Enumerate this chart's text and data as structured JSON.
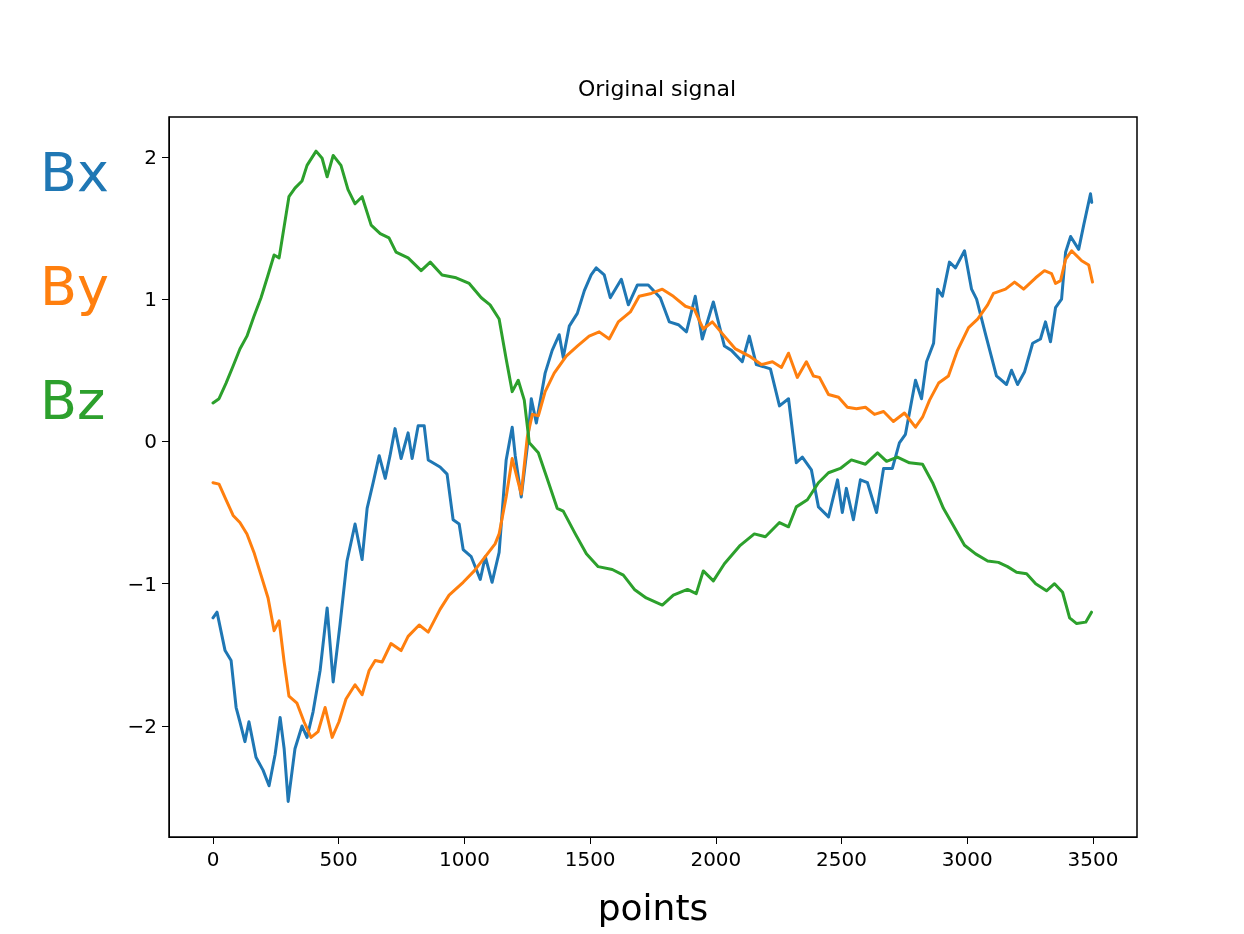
{
  "chart_data": {
    "type": "line",
    "title": "Original signal",
    "xlabel": "points",
    "xlim": [
      -175,
      3675
    ],
    "xticks": [
      0,
      500,
      1000,
      1500,
      2000,
      2500,
      3000,
      3500
    ],
    "ylim": [
      -2.78,
      2.28
    ],
    "yticks": [
      -2,
      -1,
      0,
      1,
      2
    ],
    "grid": false,
    "legend": "left",
    "marker": "none",
    "line_style": "solid",
    "series": [
      {
        "name": "Bx",
        "color": "#1f77b4",
        "x": [
          0,
          16,
          48,
          72,
          92,
          107,
          127,
          143,
          171,
          199,
          223,
          247,
          267,
          283,
          299,
          326,
          354,
          374,
          398,
          426,
          454,
          478,
          505,
          533,
          565,
          593,
          613,
          637,
          661,
          685,
          704,
          724,
          748,
          776,
          792,
          816,
          840,
          856,
          903,
          931,
          955,
          979,
          995,
          1027,
          1063,
          1083,
          1110,
          1138,
          1166,
          1190,
          1202,
          1226,
          1250,
          1266,
          1286,
          1321,
          1349,
          1377,
          1393,
          1417,
          1449,
          1477,
          1504,
          1524,
          1556,
          1580,
          1624,
          1652,
          1688,
          1731,
          1779,
          1815,
          1851,
          1883,
          1918,
          1946,
          1990,
          2034,
          2062,
          2105,
          2133,
          2161,
          2217,
          2253,
          2289,
          2320,
          2344,
          2380,
          2408,
          2448,
          2484,
          2503,
          2519,
          2547,
          2575,
          2603,
          2639,
          2667,
          2702,
          2730,
          2754,
          2774,
          2794,
          2818,
          2838,
          2866,
          2882,
          2901,
          2929,
          2953,
          2989,
          3017,
          3037,
          3073,
          3116,
          3156,
          3176,
          3200,
          3228,
          3260,
          3291,
          3311,
          3331,
          3351,
          3375,
          3391,
          3411,
          3443,
          3463,
          3490,
          3495
        ],
        "values": [
          -1.24,
          -1.2,
          -1.47,
          -1.54,
          -1.87,
          -1.97,
          -2.11,
          -1.97,
          -2.22,
          -2.31,
          -2.42,
          -2.2,
          -1.94,
          -2.16,
          -2.53,
          -2.16,
          -2.0,
          -2.08,
          -1.9,
          -1.61,
          -1.17,
          -1.69,
          -1.29,
          -0.84,
          -0.58,
          -0.83,
          -0.47,
          -0.29,
          -0.1,
          -0.26,
          -0.1,
          0.09,
          -0.12,
          0.06,
          -0.12,
          0.11,
          0.11,
          -0.13,
          -0.18,
          -0.23,
          -0.55,
          -0.58,
          -0.76,
          -0.81,
          -0.97,
          -0.81,
          -0.99,
          -0.78,
          -0.13,
          0.1,
          -0.1,
          -0.39,
          -0.04,
          0.3,
          0.13,
          0.48,
          0.64,
          0.75,
          0.59,
          0.81,
          0.9,
          1.06,
          1.17,
          1.22,
          1.17,
          1.01,
          1.14,
          0.96,
          1.1,
          1.1,
          1.01,
          0.84,
          0.82,
          0.77,
          1.02,
          0.72,
          0.98,
          0.67,
          0.64,
          0.56,
          0.74,
          0.54,
          0.51,
          0.25,
          0.3,
          -0.15,
          -0.11,
          -0.2,
          -0.46,
          -0.53,
          -0.27,
          -0.5,
          -0.33,
          -0.55,
          -0.27,
          -0.29,
          -0.5,
          -0.19,
          -0.19,
          -0.01,
          0.05,
          0.24,
          0.43,
          0.3,
          0.56,
          0.69,
          1.07,
          1.02,
          1.26,
          1.22,
          1.34,
          1.07,
          1.0,
          0.75,
          0.46,
          0.4,
          0.5,
          0.4,
          0.49,
          0.69,
          0.72,
          0.84,
          0.7,
          0.94,
          1.0,
          1.33,
          1.44,
          1.35,
          1.52,
          1.74,
          1.68
        ]
      },
      {
        "name": "By",
        "color": "#ff7f0e",
        "x": [
          0,
          24,
          52,
          80,
          107,
          135,
          163,
          191,
          219,
          243,
          263,
          283,
          302,
          334,
          362,
          390,
          418,
          446,
          474,
          501,
          529,
          565,
          593,
          621,
          645,
          673,
          708,
          748,
          776,
          820,
          856,
          903,
          939,
          995,
          1039,
          1083,
          1122,
          1138,
          1166,
          1190,
          1210,
          1226,
          1250,
          1270,
          1294,
          1321,
          1357,
          1405,
          1449,
          1496,
          1536,
          1576,
          1612,
          1660,
          1695,
          1743,
          1787,
          1831,
          1879,
          1914,
          1950,
          1986,
          2034,
          2078,
          2133,
          2181,
          2225,
          2261,
          2289,
          2324,
          2360,
          2388,
          2412,
          2448,
          2488,
          2523,
          2559,
          2595,
          2631,
          2667,
          2706,
          2750,
          2794,
          2822,
          2850,
          2886,
          2925,
          2961,
          3005,
          3041,
          3081,
          3104,
          3152,
          3188,
          3224,
          3272,
          3307,
          3335,
          3351,
          3371,
          3391,
          3415,
          3455,
          3483,
          3498
        ],
        "values": [
          -0.29,
          -0.3,
          -0.41,
          -0.52,
          -0.57,
          -0.65,
          -0.78,
          -0.94,
          -1.1,
          -1.33,
          -1.26,
          -1.55,
          -1.79,
          -1.84,
          -1.97,
          -2.08,
          -2.04,
          -1.87,
          -2.08,
          -1.97,
          -1.81,
          -1.71,
          -1.78,
          -1.61,
          -1.54,
          -1.55,
          -1.42,
          -1.47,
          -1.37,
          -1.29,
          -1.34,
          -1.18,
          -1.08,
          -0.99,
          -0.91,
          -0.81,
          -0.72,
          -0.65,
          -0.39,
          -0.12,
          -0.26,
          -0.37,
          0.03,
          0.19,
          0.18,
          0.35,
          0.48,
          0.6,
          0.67,
          0.74,
          0.77,
          0.72,
          0.84,
          0.91,
          1.02,
          1.04,
          1.07,
          1.02,
          0.95,
          0.93,
          0.79,
          0.84,
          0.74,
          0.65,
          0.6,
          0.54,
          0.56,
          0.52,
          0.62,
          0.45,
          0.56,
          0.46,
          0.45,
          0.33,
          0.31,
          0.24,
          0.23,
          0.24,
          0.19,
          0.21,
          0.14,
          0.2,
          0.1,
          0.17,
          0.29,
          0.41,
          0.46,
          0.64,
          0.8,
          0.86,
          0.96,
          1.04,
          1.07,
          1.12,
          1.07,
          1.15,
          1.2,
          1.18,
          1.11,
          1.13,
          1.28,
          1.34,
          1.27,
          1.24,
          1.12
        ]
      },
      {
        "name": "Bz",
        "color": "#2ca02c",
        "x": [
          0,
          24,
          52,
          80,
          107,
          135,
          163,
          191,
          219,
          243,
          263,
          283,
          302,
          326,
          354,
          374,
          410,
          434,
          454,
          478,
          509,
          537,
          565,
          593,
          629,
          665,
          700,
          728,
          776,
          828,
          864,
          911,
          967,
          1019,
          1067,
          1102,
          1138,
          1166,
          1190,
          1214,
          1238,
          1258,
          1294,
          1329,
          1369,
          1393,
          1441,
          1485,
          1532,
          1588,
          1632,
          1676,
          1723,
          1787,
          1831,
          1887,
          1922,
          1950,
          1990,
          2034,
          2097,
          2153,
          2197,
          2253,
          2289,
          2320,
          2364,
          2408,
          2448,
          2495,
          2539,
          2595,
          2643,
          2679,
          2722,
          2770,
          2822,
          2862,
          2905,
          2941,
          2989,
          3033,
          3081,
          3124,
          3160,
          3196,
          3236,
          3272,
          3315,
          3347,
          3379,
          3407,
          3435,
          3471,
          3494
        ],
        "values": [
          0.27,
          0.3,
          0.41,
          0.53,
          0.65,
          0.74,
          0.88,
          1.01,
          1.17,
          1.31,
          1.29,
          1.51,
          1.72,
          1.78,
          1.83,
          1.94,
          2.04,
          1.99,
          1.86,
          2.01,
          1.94,
          1.77,
          1.67,
          1.72,
          1.52,
          1.46,
          1.43,
          1.33,
          1.29,
          1.2,
          1.26,
          1.17,
          1.15,
          1.11,
          1.01,
          0.96,
          0.86,
          0.58,
          0.35,
          0.43,
          0.29,
          -0.01,
          -0.08,
          -0.26,
          -0.47,
          -0.49,
          -0.65,
          -0.79,
          -0.88,
          -0.9,
          -0.94,
          -1.04,
          -1.1,
          -1.15,
          -1.08,
          -1.04,
          -1.07,
          -0.91,
          -0.98,
          -0.86,
          -0.73,
          -0.65,
          -0.67,
          -0.57,
          -0.6,
          -0.46,
          -0.41,
          -0.29,
          -0.22,
          -0.19,
          -0.13,
          -0.16,
          -0.08,
          -0.14,
          -0.11,
          -0.15,
          -0.16,
          -0.29,
          -0.47,
          -0.58,
          -0.73,
          -0.79,
          -0.84,
          -0.85,
          -0.88,
          -0.92,
          -0.93,
          -1.0,
          -1.05,
          -1.0,
          -1.06,
          -1.24,
          -1.28,
          -1.27,
          -1.2
        ]
      }
    ]
  }
}
